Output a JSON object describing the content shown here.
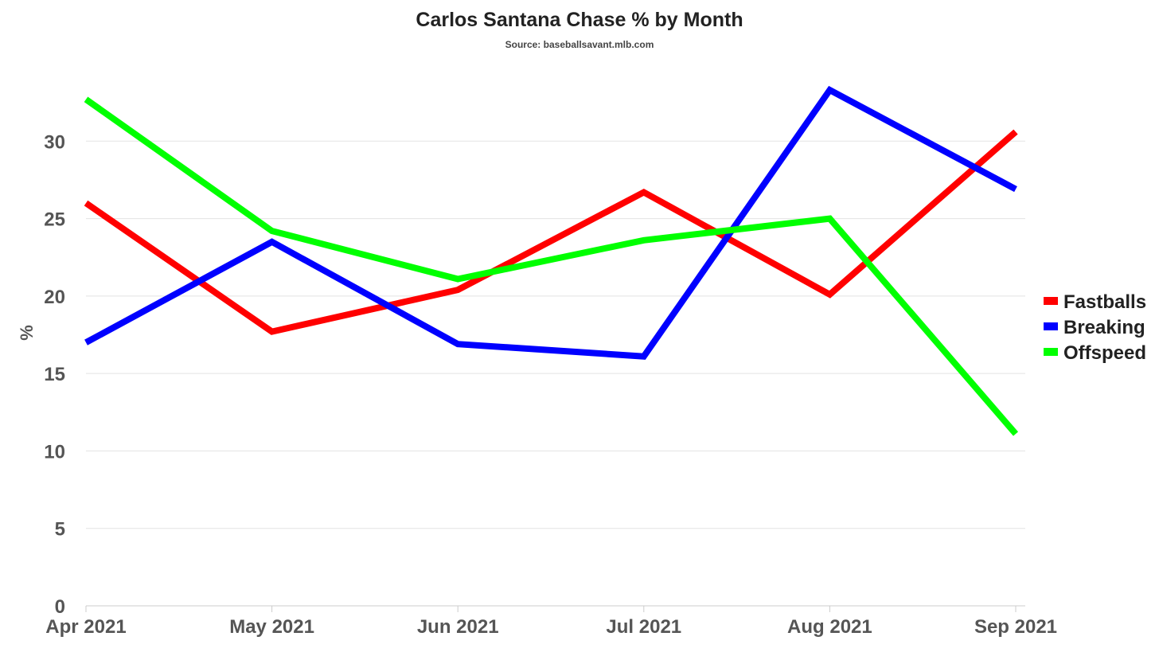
{
  "chart_data": {
    "type": "line",
    "title": "Carlos Santana Chase % by Month",
    "subtitle": "Source: baseballsavant.mlb.com",
    "ylabel": "%",
    "xlabel": "",
    "categories": [
      "Apr 2021",
      "May 2021",
      "Jun 2021",
      "Jul 2021",
      "Aug 2021",
      "Sep 2021"
    ],
    "ylim": [
      0,
      35
    ],
    "yticks": [
      0,
      5,
      10,
      15,
      20,
      25,
      30
    ],
    "grid": true,
    "legend_position": "right",
    "series": [
      {
        "name": "Fastballs",
        "color": "#ff0000",
        "values": [
          26.0,
          17.7,
          20.4,
          26.7,
          20.1,
          30.6
        ]
      },
      {
        "name": "Breaking",
        "color": "#0000ff",
        "values": [
          17.0,
          23.5,
          16.9,
          16.1,
          33.3,
          26.9
        ]
      },
      {
        "name": "Offspeed",
        "color": "#00ff00",
        "values": [
          32.7,
          24.2,
          21.1,
          23.6,
          25.0,
          11.1
        ]
      }
    ]
  }
}
